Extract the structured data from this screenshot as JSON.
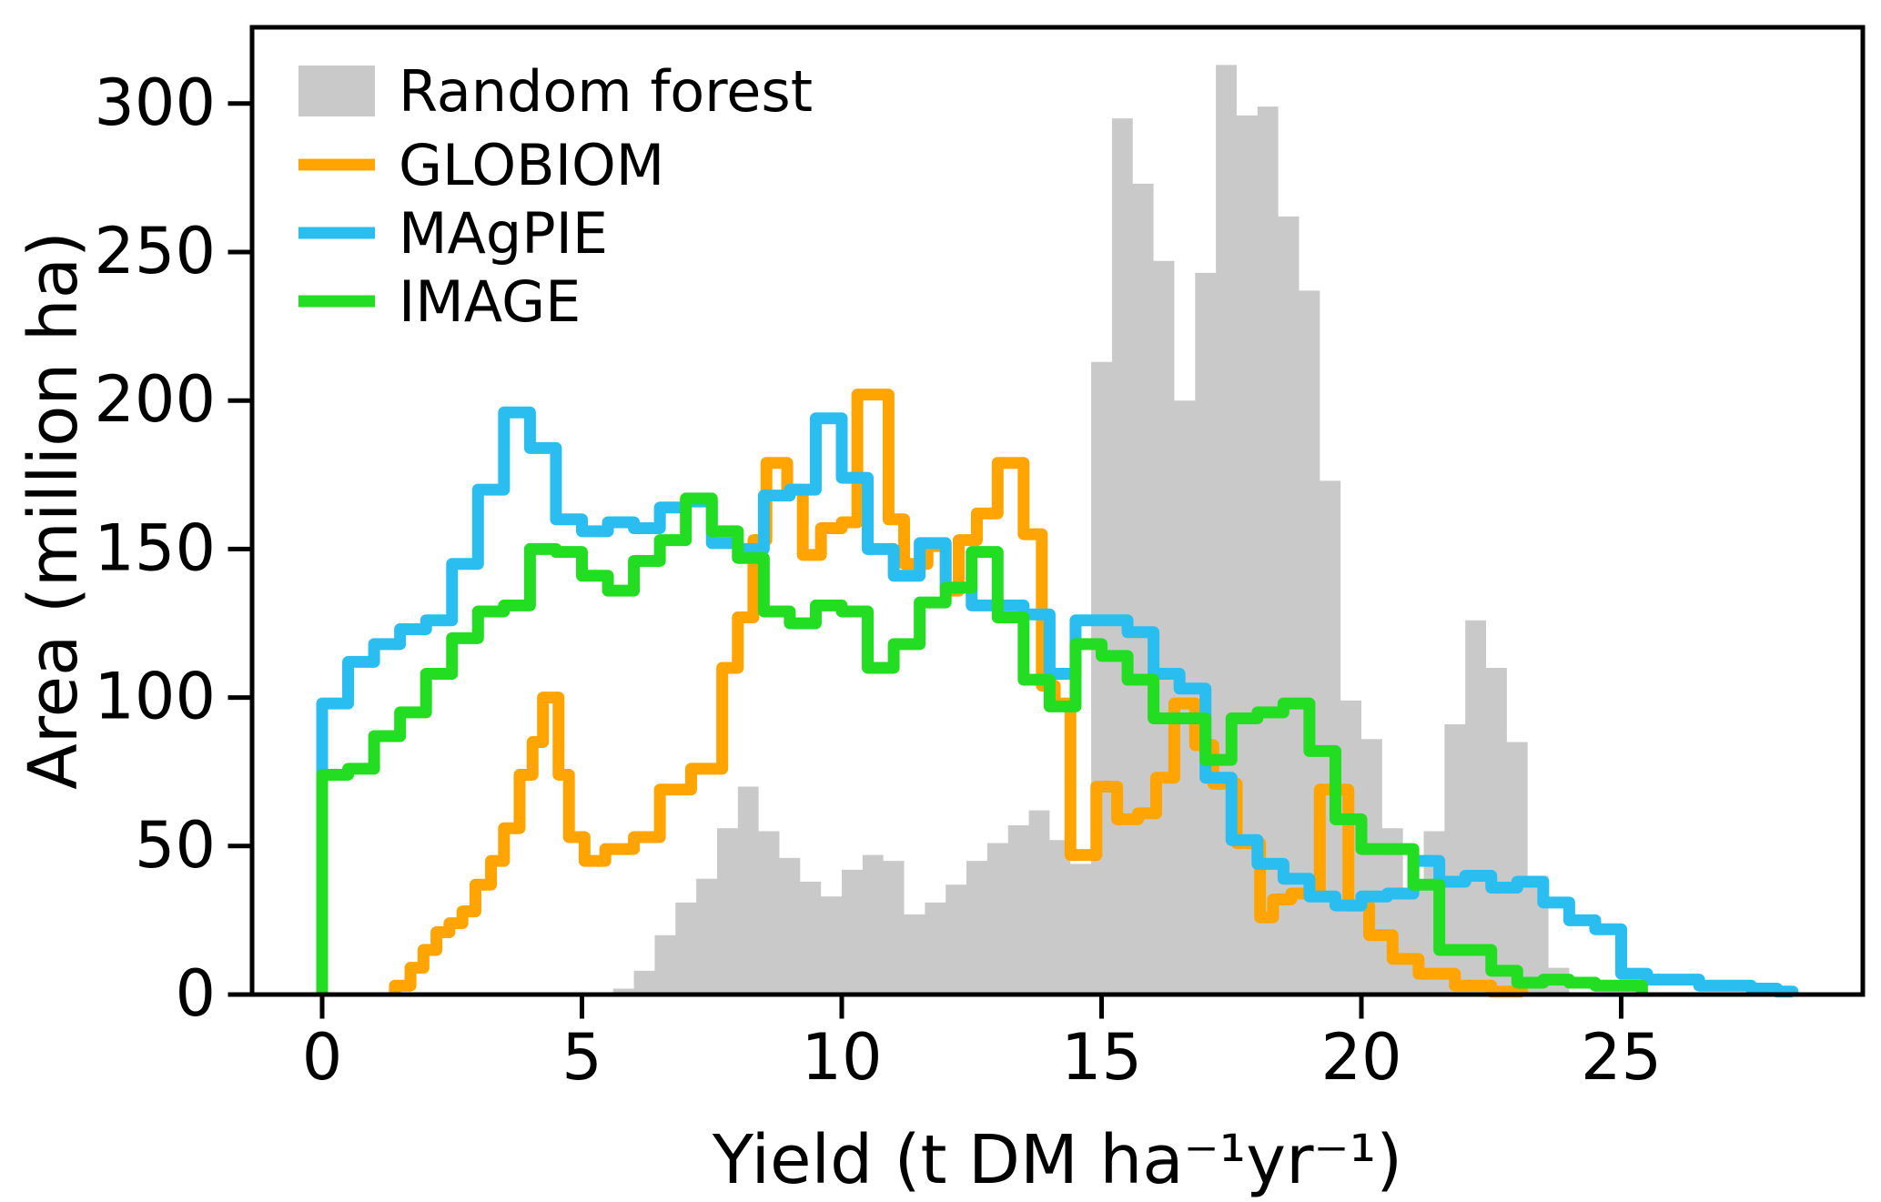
{
  "chart_data": {
    "type": "step-histogram",
    "xlabel": "Yield (t DM ha⁻¹yr⁻¹)",
    "ylabel": "Area (million ha)",
    "xlim": [
      0,
      29.6
    ],
    "ylim": [
      0,
      325
    ],
    "xticks": [
      0,
      5,
      10,
      15,
      20,
      25
    ],
    "yticks": [
      0,
      50,
      100,
      150,
      200,
      250,
      300
    ],
    "grid": false,
    "legend_position": "upper-left",
    "series": [
      {
        "name": "Random forest",
        "style": "filled-histogram",
        "color": "#C9C9C9",
        "bin_width": 0.4,
        "bin_start": 5.6,
        "values": [
          2,
          8,
          20,
          31,
          39,
          56,
          70,
          55,
          46,
          38,
          33,
          42,
          47,
          45,
          27,
          31,
          37,
          45,
          51,
          57,
          62,
          52,
          44,
          213,
          295,
          273,
          247,
          200,
          243,
          313,
          296,
          299,
          262,
          237,
          173,
          99,
          86,
          56,
          36,
          55,
          91,
          126,
          110,
          85,
          40,
          9
        ],
        "end_x": 24.0
      },
      {
        "name": "GLOBIOM",
        "style": "step-line",
        "color": "#FFA400",
        "steps": [
          [
            1.4,
            3
          ],
          [
            1.7,
            9
          ],
          [
            1.95,
            15
          ],
          [
            2.2,
            21
          ],
          [
            2.45,
            24
          ],
          [
            2.7,
            28
          ],
          [
            2.95,
            37
          ],
          [
            3.25,
            45
          ],
          [
            3.5,
            56
          ],
          [
            3.8,
            74
          ],
          [
            4.05,
            85
          ],
          [
            4.25,
            100
          ],
          [
            4.55,
            74
          ],
          [
            4.75,
            53
          ],
          [
            5.05,
            45
          ],
          [
            5.45,
            49
          ],
          [
            6.0,
            53
          ],
          [
            6.5,
            69
          ],
          [
            7.1,
            76
          ],
          [
            7.7,
            110
          ],
          [
            8.0,
            127
          ],
          [
            8.3,
            153
          ],
          [
            8.55,
            179
          ],
          [
            8.95,
            170
          ],
          [
            9.25,
            148
          ],
          [
            9.6,
            157
          ],
          [
            10.0,
            159
          ],
          [
            10.3,
            202
          ],
          [
            10.9,
            160
          ],
          [
            11.2,
            145
          ],
          [
            11.65,
            151
          ],
          [
            12.0,
            136
          ],
          [
            12.25,
            153
          ],
          [
            12.6,
            162
          ],
          [
            13.0,
            179
          ],
          [
            13.5,
            155
          ],
          [
            13.85,
            104
          ],
          [
            14.1,
            98
          ],
          [
            14.4,
            47
          ],
          [
            14.9,
            70
          ],
          [
            15.3,
            59
          ],
          [
            15.7,
            61
          ],
          [
            16.05,
            73
          ],
          [
            16.4,
            98
          ],
          [
            16.8,
            84
          ],
          [
            17.15,
            71
          ],
          [
            17.6,
            51
          ],
          [
            18.05,
            26
          ],
          [
            18.3,
            32
          ],
          [
            18.65,
            34
          ],
          [
            19.2,
            69
          ],
          [
            19.75,
            30
          ],
          [
            20.15,
            20
          ],
          [
            20.6,
            12
          ],
          [
            21.1,
            7
          ],
          [
            21.8,
            3
          ],
          [
            22.5,
            1
          ],
          [
            23.1,
            0
          ]
        ]
      },
      {
        "name": "MAgPIE",
        "style": "step-line",
        "color": "#29BDF0",
        "bin_width": 0.5,
        "bin_start": 0,
        "start_point": [
          0,
          44
        ],
        "values": [
          98,
          112,
          118,
          123,
          126,
          145,
          170,
          196,
          184,
          160,
          156,
          159,
          157,
          164,
          166,
          152,
          150,
          168,
          170,
          194,
          174,
          150,
          141,
          152,
          137,
          131,
          131,
          128,
          108,
          126,
          126,
          122,
          108,
          103,
          73,
          52,
          44,
          39,
          33,
          30,
          33,
          34,
          45,
          38,
          40,
          36,
          38,
          31,
          25,
          22,
          7,
          5,
          5,
          3,
          3,
          2,
          1
        ],
        "end_x": 28.3
      },
      {
        "name": "IMAGE",
        "style": "step-line",
        "color": "#22DD22",
        "bin_width": 0.5,
        "bin_start": 0,
        "values": [
          74,
          76,
          87,
          95,
          108,
          120,
          129,
          131,
          150,
          149,
          141,
          136,
          146,
          153,
          167,
          156,
          147,
          129,
          125,
          131,
          129,
          110,
          118,
          132,
          137,
          149,
          127,
          106,
          97,
          118,
          114,
          106,
          93,
          93,
          79,
          93,
          95,
          98,
          82,
          59,
          49,
          49,
          37,
          15,
          15,
          8,
          4,
          5,
          4,
          3,
          3
        ],
        "end_x": 25.4
      }
    ]
  }
}
